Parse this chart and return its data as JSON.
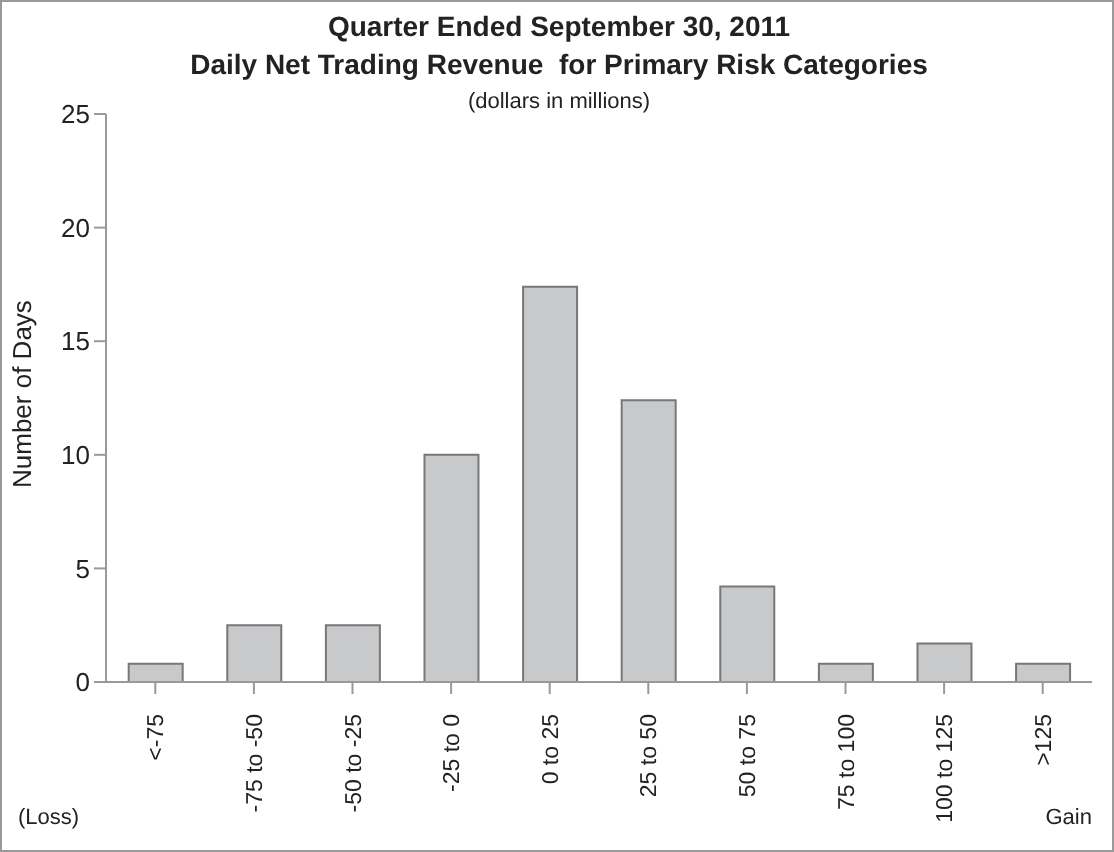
{
  "chart_data": {
    "type": "bar",
    "title": "Quarter Ended September 30, 2011\nDaily Net Trading Revenue  for Primary Risk Categories",
    "subtitle": "(dollars in millions)",
    "ylabel": "Number of Days",
    "categories": [
      "<-75",
      "-75 to -50",
      "-50 to -25",
      "-25 to 0",
      "0 to 25",
      "25 to 50",
      "50 to 75",
      "75 to 100",
      "100 to 125",
      ">125"
    ],
    "values": [
      0.8,
      2.5,
      2.5,
      10,
      17.4,
      12.4,
      4.2,
      0.8,
      1.7,
      0.8
    ],
    "color": "#c8c9cb",
    "ylim": [
      0,
      25
    ],
    "yticks": [
      0,
      5,
      10,
      15,
      20,
      25
    ],
    "grid": false,
    "annotations": [
      "(Loss)",
      "Gain"
    ]
  }
}
